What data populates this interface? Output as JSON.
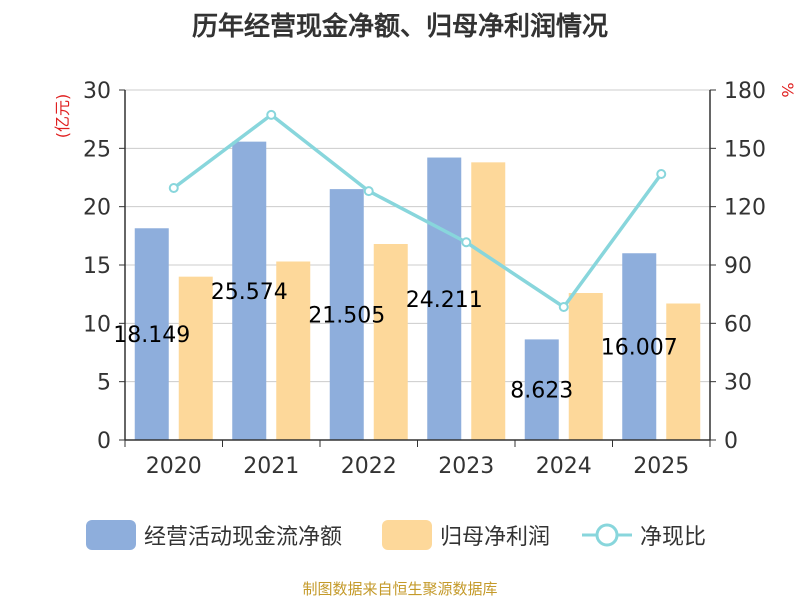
{
  "chart_data": {
    "type": "bar",
    "title": "历年经营现金净额、归母净利润情况",
    "categories": [
      "2020",
      "2021",
      "2022",
      "2023",
      "2024",
      "2025"
    ],
    "series": [
      {
        "name": "经营活动现金流净额",
        "kind": "bar",
        "axis": "left",
        "values": [
          18.149,
          25.574,
          21.505,
          24.211,
          8.623,
          16.007
        ],
        "labels": [
          "18.149",
          "25.574",
          "21.505",
          "24.211",
          "8.623",
          "16.007"
        ],
        "color": "#8eaedc"
      },
      {
        "name": "归母净利润",
        "kind": "bar",
        "axis": "left",
        "values": [
          14.0,
          15.3,
          16.8,
          23.8,
          12.6,
          11.7
        ],
        "color": "#fdd89a"
      },
      {
        "name": "净现比",
        "kind": "line",
        "axis": "right",
        "values": [
          129.6,
          167.2,
          128.0,
          101.7,
          68.4,
          136.8
        ],
        "color": "#88d6dc"
      }
    ],
    "left_axis": {
      "label": "(亿元)",
      "min": 0,
      "max": 30,
      "ticks": [
        0,
        5,
        10,
        15,
        20,
        25,
        30
      ]
    },
    "right_axis": {
      "label": "%",
      "min": 0,
      "max": 180,
      "ticks": [
        0,
        30,
        60,
        90,
        120,
        150,
        180
      ]
    },
    "grid": true,
    "legend_position": "bottom"
  },
  "source": {
    "text": "制图数据来自恒生聚源数据库",
    "color": "#c49a2a"
  },
  "colors": {
    "axis_label": "#e02020",
    "text": "#333333"
  }
}
